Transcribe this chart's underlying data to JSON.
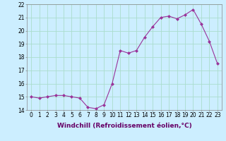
{
  "hours": [
    0,
    1,
    2,
    3,
    4,
    5,
    6,
    7,
    8,
    9,
    10,
    11,
    12,
    13,
    14,
    15,
    16,
    17,
    18,
    19,
    20,
    21,
    22,
    23
  ],
  "values": [
    15.0,
    14.9,
    15.0,
    15.1,
    15.1,
    15.0,
    14.9,
    14.2,
    14.1,
    14.4,
    16.0,
    18.5,
    18.3,
    18.5,
    19.5,
    20.3,
    21.0,
    21.1,
    20.9,
    21.2,
    21.6,
    20.5,
    19.2,
    17.5
  ],
  "line_color": "#993399",
  "marker": "D",
  "marker_size": 2.0,
  "bg_color": "#cceeff",
  "grid_color": "#aaddcc",
  "ylim": [
    14,
    22
  ],
  "xlim": [
    -0.5,
    23.5
  ],
  "yticks": [
    14,
    15,
    16,
    17,
    18,
    19,
    20,
    21,
    22
  ],
  "xticks": [
    0,
    1,
    2,
    3,
    4,
    5,
    6,
    7,
    8,
    9,
    10,
    11,
    12,
    13,
    14,
    15,
    16,
    17,
    18,
    19,
    20,
    21,
    22,
    23
  ],
  "xlabel": "Windchill (Refroidissement éolien,°C)",
  "xlabel_fontsize": 6.5,
  "tick_fontsize": 5.5,
  "linewidth": 0.8
}
